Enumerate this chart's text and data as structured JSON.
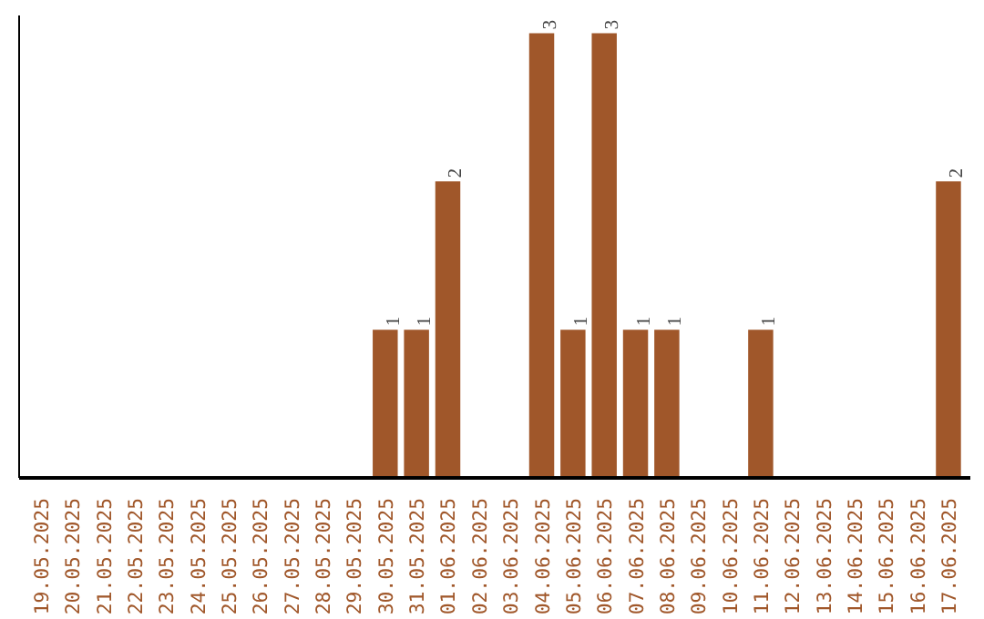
{
  "chart_data": {
    "type": "bar",
    "categories": [
      "19.05.2025",
      "20.05.2025",
      "21.05.2025",
      "22.05.2025",
      "23.05.2025",
      "24.05.2025",
      "25.05.2025",
      "26.05.2025",
      "27.05.2025",
      "28.05.2025",
      "29.05.2025",
      "30.05.2025",
      "31.05.2025",
      "01.06.2025",
      "02.06.2025",
      "03.06.2025",
      "04.06.2025",
      "05.06.2025",
      "06.06.2025",
      "07.06.2025",
      "08.06.2025",
      "09.06.2025",
      "10.06.2025",
      "11.06.2025",
      "12.06.2025",
      "13.06.2025",
      "14.06.2025",
      "15.06.2025",
      "16.06.2025",
      "17.06.2025"
    ],
    "values": [
      0,
      0,
      0,
      0,
      0,
      0,
      0,
      0,
      0,
      0,
      0,
      1,
      1,
      2,
      0,
      0,
      3,
      1,
      3,
      1,
      1,
      0,
      0,
      1,
      0,
      0,
      0,
      0,
      0,
      2
    ],
    "value_labels": [
      null,
      null,
      null,
      null,
      null,
      null,
      null,
      null,
      null,
      null,
      null,
      "1",
      "1",
      "2",
      null,
      null,
      "3",
      "1",
      "3",
      "1",
      "1",
      null,
      null,
      "1",
      null,
      null,
      null,
      null,
      null,
      "2"
    ],
    "color": "#a0572a",
    "tick_labels": "x",
    "grid": false
  }
}
